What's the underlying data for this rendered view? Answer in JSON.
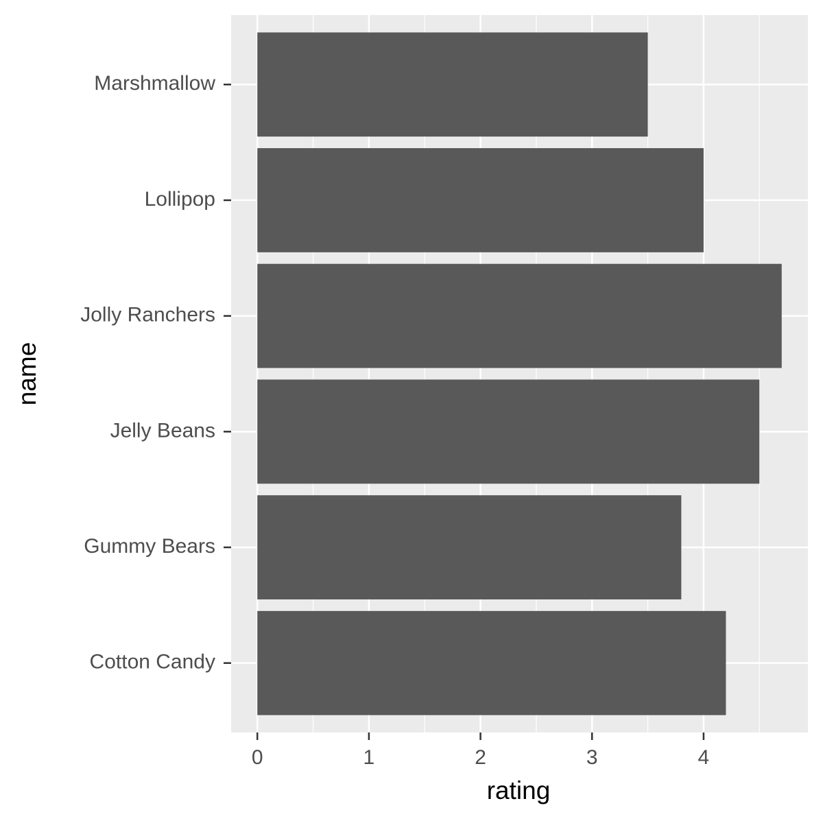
{
  "chart_data": {
    "type": "bar",
    "orientation": "horizontal",
    "x_label": "rating",
    "y_label": "name",
    "categories": [
      "Cotton Candy",
      "Gummy Bears",
      "Jelly Beans",
      "Jolly Ranchers",
      "Lollipop",
      "Marshmallow"
    ],
    "values": [
      4.2,
      3.8,
      4.5,
      4.7,
      4.0,
      3.5
    ],
    "color": "#595959",
    "xlim": [
      -0.235,
      4.935
    ],
    "xticks": [
      0,
      1,
      2,
      3,
      4
    ],
    "grid": true,
    "minor_grid": true
  }
}
